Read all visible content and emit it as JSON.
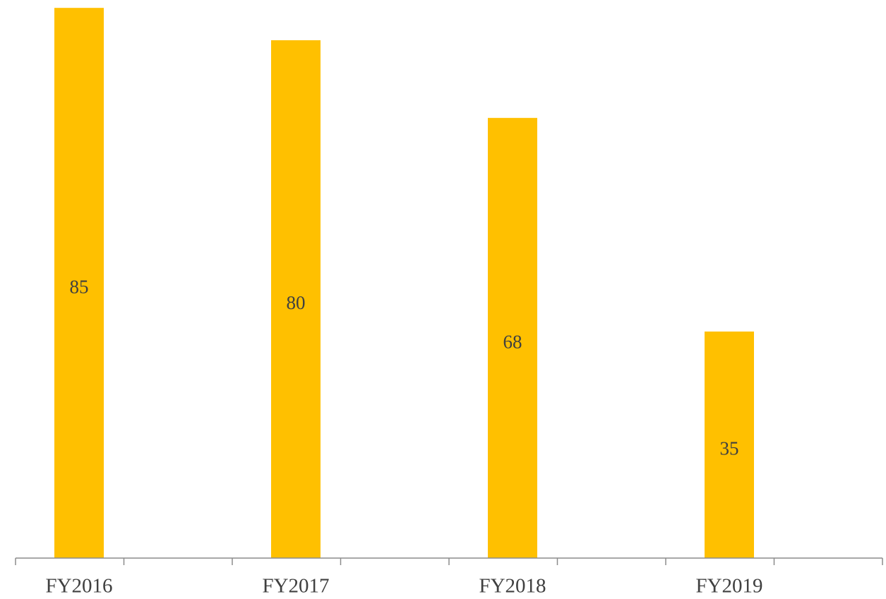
{
  "chart_data": {
    "type": "bar",
    "categories": [
      "FY2016",
      "FY2017",
      "FY2018",
      "FY2019"
    ],
    "values": [
      85,
      80,
      68,
      35
    ],
    "color": "#ffc000",
    "ylim": [
      0,
      86
    ]
  }
}
